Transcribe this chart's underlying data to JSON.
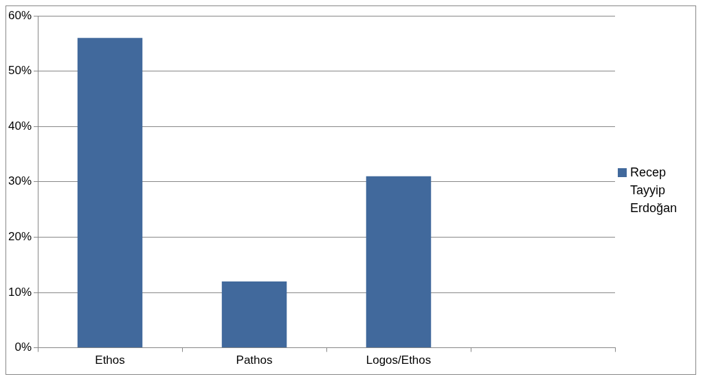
{
  "chart_data": {
    "type": "bar",
    "categories": [
      "Ethos",
      "Pathos",
      "Logos/Ethos",
      null
    ],
    "series": [
      {
        "name": "Recep Tayyip Erdoğan",
        "color": "#41699c",
        "values": [
          56,
          12,
          31,
          null
        ]
      }
    ],
    "ylim": [
      0,
      60
    ],
    "yticks": [
      {
        "value": 0,
        "label": "0%"
      },
      {
        "value": 10,
        "label": "10%"
      },
      {
        "value": 20,
        "label": "20%"
      },
      {
        "value": 30,
        "label": "30%"
      },
      {
        "value": 40,
        "label": "40%"
      },
      {
        "value": 50,
        "label": "50%"
      },
      {
        "value": 60,
        "label": "60%"
      }
    ],
    "grid": "y",
    "legend": "right"
  }
}
